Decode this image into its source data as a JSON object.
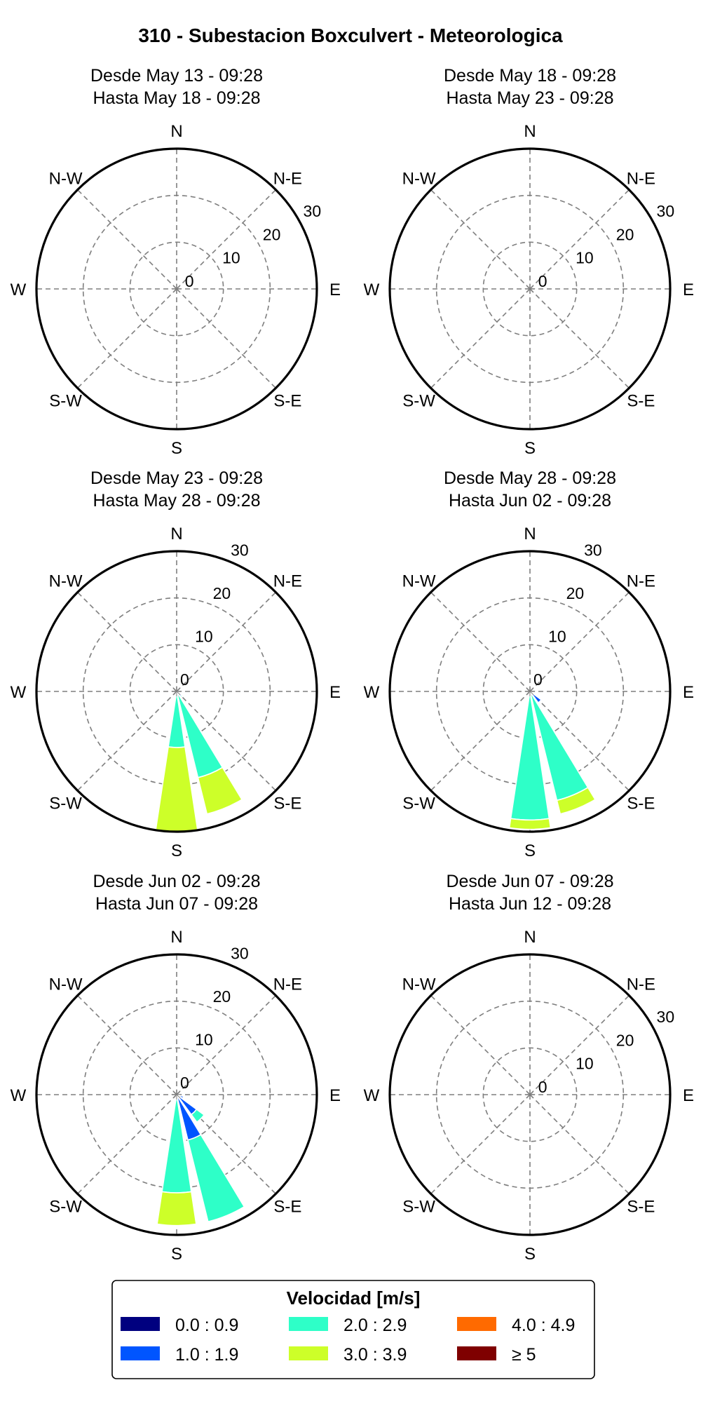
{
  "figure": {
    "title": "310 - Subestacion Boxculvert - Meteorologica"
  },
  "colors": {
    "bins": [
      "#00007f",
      "#0055ff",
      "#2effc8",
      "#cdff29",
      "#ff6a00",
      "#7f0000"
    ],
    "grid": "#7f7f7f",
    "outline": "#000000"
  },
  "legend": {
    "title": "Velocidad [m/s]",
    "items": [
      "0.0 : 0.9",
      "1.0 : 1.9",
      "2.0 : 2.9",
      "3.0 : 3.9",
      "4.0 : 4.9",
      "≥  5"
    ]
  },
  "chart_data": [
    {
      "type": "windrose",
      "subtitle": [
        "Desde May 13 - 09:28",
        "Hasta May 18 - 09:28"
      ],
      "direction_labels": [
        "N",
        "N-E",
        "E",
        "S-E",
        "S",
        "S-W",
        "W",
        "N-W"
      ],
      "r_ticks": [
        0,
        10,
        20,
        30
      ],
      "rmax": 30,
      "tick_angle_deg": 60,
      "bins": [
        "0.0 : 0.9",
        "1.0 : 1.9",
        "2.0 : 2.9",
        "3.0 : 3.9",
        "4.0 : 4.9",
        "≥  5"
      ],
      "sectors": []
    },
    {
      "type": "windrose",
      "subtitle": [
        "Desde May 18 - 09:28",
        "Hasta May 23 - 09:28"
      ],
      "direction_labels": [
        "N",
        "N-E",
        "E",
        "S-E",
        "S",
        "S-W",
        "W",
        "N-W"
      ],
      "r_ticks": [
        0,
        10,
        20,
        30
      ],
      "rmax": 30,
      "tick_angle_deg": 60,
      "bins": [
        "0.0 : 0.9",
        "1.0 : 1.9",
        "2.0 : 2.9",
        "3.0 : 3.9",
        "4.0 : 4.9",
        "≥  5"
      ],
      "sectors": []
    },
    {
      "type": "windrose",
      "subtitle": [
        "Desde May 23 - 09:28",
        "Hasta May 28 - 09:28"
      ],
      "direction_labels": [
        "N",
        "N-E",
        "E",
        "S-E",
        "S",
        "S-W",
        "W",
        "N-W"
      ],
      "r_ticks": [
        0,
        10,
        20,
        30
      ],
      "rmax": 30,
      "tick_angle_deg": 22.5,
      "bins": [
        "0.0 : 0.9",
        "1.0 : 1.9",
        "2.0 : 2.9",
        "3.0 : 3.9",
        "4.0 : 4.9",
        "≥  5"
      ],
      "sectors": [
        {
          "direction": 135,
          "values": [
            0.5,
            0.8,
            0.3,
            0,
            0,
            0
          ]
        },
        {
          "direction": 157.5,
          "values": [
            0,
            0,
            19,
            8,
            0,
            0
          ]
        },
        {
          "direction": 180,
          "values": [
            0,
            0,
            12,
            18,
            0,
            0
          ]
        }
      ]
    },
    {
      "type": "windrose",
      "subtitle": [
        "Desde May 28 - 09:28",
        "Hasta Jun 02 - 09:28"
      ],
      "direction_labels": [
        "N",
        "N-E",
        "E",
        "S-E",
        "S",
        "S-W",
        "W",
        "N-W"
      ],
      "r_ticks": [
        0,
        10,
        20,
        30
      ],
      "rmax": 30,
      "tick_angle_deg": 22.5,
      "bins": [
        "0.0 : 0.9",
        "1.0 : 1.9",
        "2.0 : 2.9",
        "3.0 : 3.9",
        "4.0 : 4.9",
        "≥  5"
      ],
      "sectors": [
        {
          "direction": 135,
          "values": [
            0,
            3,
            0,
            0,
            0,
            0
          ]
        },
        {
          "direction": 157.5,
          "values": [
            0,
            0,
            24,
            3,
            0,
            0
          ]
        },
        {
          "direction": 180,
          "values": [
            0,
            0,
            27.5,
            2,
            0,
            0
          ]
        }
      ]
    },
    {
      "type": "windrose",
      "subtitle": [
        "Desde Jun 02 - 09:28",
        "Hasta Jun 07 - 09:28"
      ],
      "direction_labels": [
        "N",
        "N-E",
        "E",
        "S-E",
        "S",
        "S-W",
        "W",
        "N-W"
      ],
      "r_ticks": [
        0,
        10,
        20,
        30
      ],
      "rmax": 30,
      "tick_angle_deg": 22.5,
      "bins": [
        "0.0 : 0.9",
        "1.0 : 1.9",
        "2.0 : 2.9",
        "3.0 : 3.9",
        "4.0 : 4.9",
        "≥  5"
      ],
      "sectors": [
        {
          "direction": 112.5,
          "values": [
            0,
            1.5,
            0,
            0,
            0,
            0
          ]
        },
        {
          "direction": 135,
          "values": [
            0.3,
            5,
            2,
            0,
            0,
            0
          ]
        },
        {
          "direction": 157.5,
          "values": [
            0,
            10,
            18,
            0,
            0,
            0
          ]
        },
        {
          "direction": 180,
          "values": [
            0,
            1,
            20,
            7,
            0,
            0
          ]
        }
      ]
    },
    {
      "type": "windrose",
      "subtitle": [
        "Desde Jun 07 - 09:28",
        "Hasta Jun 12 - 09:28"
      ],
      "direction_labels": [
        "N",
        "N-E",
        "E",
        "S-E",
        "S",
        "S-W",
        "W",
        "N-W"
      ],
      "r_ticks": [
        0,
        10,
        20,
        30
      ],
      "rmax": 30,
      "tick_angle_deg": 60,
      "bins": [
        "0.0 : 0.9",
        "1.0 : 1.9",
        "2.0 : 2.9",
        "3.0 : 3.9",
        "4.0 : 4.9",
        "≥  5"
      ],
      "sectors": []
    }
  ]
}
